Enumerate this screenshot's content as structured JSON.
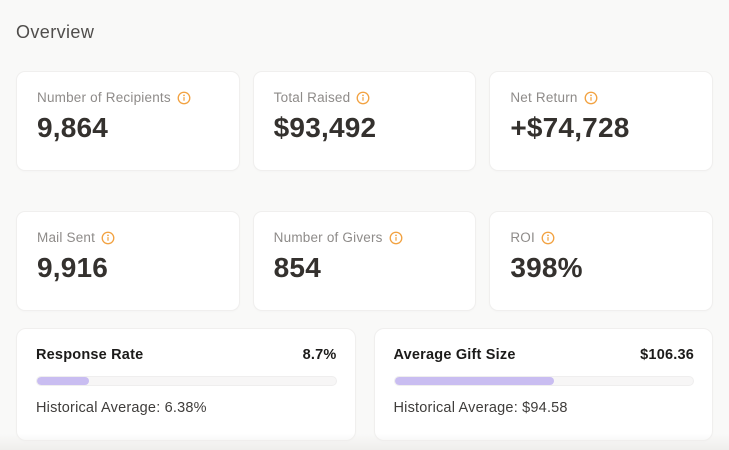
{
  "page": {
    "title": "Overview"
  },
  "colors": {
    "background": "#f9f9f8",
    "accent_purple": "#c9bdf1",
    "info_icon_orange": "#f2a13f",
    "stat_value_text": "#34312e",
    "stat_label_text": "#8e8b89"
  },
  "stat_cards": [
    {
      "label": "Number of Recipients",
      "value": "9,864"
    },
    {
      "label": "Total Raised",
      "value": "$93,492"
    },
    {
      "label": "Net Return",
      "value": "+$74,728"
    },
    {
      "label": "Mail Sent",
      "value": "9,916"
    },
    {
      "label": "Number of Givers",
      "value": "854"
    },
    {
      "label": "ROI",
      "value": "398%"
    }
  ],
  "progress_cards": [
    {
      "title": "Response Rate",
      "value": "8.7%",
      "historical": "Historical Average: 6.38%",
      "percent": 17.5
    },
    {
      "title": "Average Gift Size",
      "value": "$106.36",
      "historical": "Historical Average: $94.58",
      "percent": 53.5
    }
  ]
}
